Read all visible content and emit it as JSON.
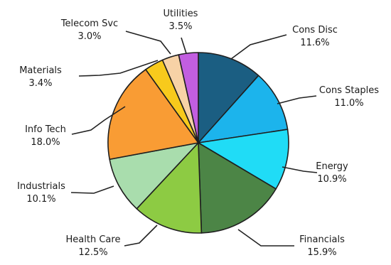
{
  "chart_data": {
    "type": "pie",
    "start": "12 o'clock",
    "direction": "clockwise",
    "slices": [
      {
        "label": "Cons Disc",
        "value": 11.6,
        "value_label": "11.6%",
        "color": "#1b5e82"
      },
      {
        "label": "Cons Staples",
        "value": 11.0,
        "value_label": "11.0%",
        "color": "#1cb4ec"
      },
      {
        "label": "Energy",
        "value": 10.9,
        "value_label": "10.9%",
        "color": "#20dcf6"
      },
      {
        "label": "Financials",
        "value": 15.9,
        "value_label": "15.9%",
        "color": "#4c8546"
      },
      {
        "label": "Health Care",
        "value": 12.5,
        "value_label": "12.5%",
        "color": "#8dcb43"
      },
      {
        "label": "Industrials",
        "value": 10.1,
        "value_label": "10.1%",
        "color": "#a9ddad"
      },
      {
        "label": "Info Tech",
        "value": 18.0,
        "value_label": "18.0%",
        "color": "#f99c34"
      },
      {
        "label": "Materials",
        "value": 3.4,
        "value_label": "3.4%",
        "color": "#f8ca1c"
      },
      {
        "label": "Telecom Svc",
        "value": 3.0,
        "value_label": "3.0%",
        "color": "#f7d2a6"
      },
      {
        "label": "Utilities",
        "value": 3.5,
        "value_label": "3.5%",
        "color": "#c25ee0"
      }
    ]
  }
}
